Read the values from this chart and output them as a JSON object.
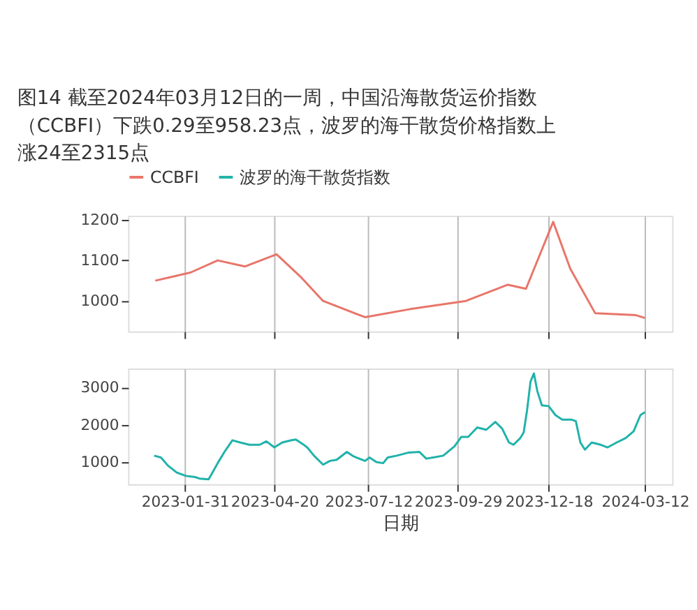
{
  "chart_data": [
    {
      "type": "line",
      "title": "图14  截至2024年03月12日的一周，中国沿海散货运价指数（CCBFI）下跌0.29至958.23点，波罗的海干散货价格指数上涨24至2315点",
      "legend": "top",
      "grid": "x",
      "tick_labels": "y",
      "xlim": [
        "2022-12-12",
        "2024-04-05"
      ],
      "xticks": [
        "2023-01-31",
        "2023-04-20",
        "2023-07-12",
        "2023-09-29",
        "2023-12-18",
        "2024-03-12"
      ],
      "ylim": [
        925,
        1210
      ],
      "yticks": [
        1000,
        1100,
        1200
      ],
      "series": [
        {
          "name": "CCBFI",
          "color": "#e8756a",
          "x": [
            "2023-01-05",
            "2023-02-05",
            "2023-03-01",
            "2023-03-25",
            "2023-04-22",
            "2023-05-13",
            "2023-06-02",
            "2023-07-09",
            "2023-08-18",
            "2023-10-06",
            "2023-11-12",
            "2023-11-28",
            "2023-12-22",
            "2024-01-06",
            "2024-01-28",
            "2024-03-04",
            "2024-03-12"
          ],
          "values": [
            1050,
            1070,
            1100,
            1085,
            1115,
            1060,
            1000,
            960,
            980,
            1000,
            1040,
            1030,
            1195,
            1080,
            970,
            965,
            958
          ]
        }
      ]
    },
    {
      "type": "line",
      "xlabel": "日期",
      "legend": "top",
      "grid": "x",
      "xlim": [
        "2022-12-12",
        "2024-04-05"
      ],
      "xticks": [
        "2023-01-31",
        "2023-04-20",
        "2023-07-12",
        "2023-09-29",
        "2023-12-18",
        "2024-03-12"
      ],
      "ylim": [
        420,
        3500
      ],
      "yticks": [
        1000,
        2000,
        3000
      ],
      "series": [
        {
          "name": "波罗的海干散货指数",
          "color": "#20b2aa",
          "x": [
            "2023-01-04",
            "2023-01-10",
            "2023-01-16",
            "2023-01-24",
            "2023-02-01",
            "2023-02-09",
            "2023-02-13",
            "2023-02-21",
            "2023-02-25",
            "2023-03-01",
            "2023-03-07",
            "2023-03-14",
            "2023-03-21",
            "2023-03-29",
            "2023-04-07",
            "2023-04-13",
            "2023-04-20",
            "2023-04-27",
            "2023-05-05",
            "2023-05-09",
            "2023-05-15",
            "2023-05-19",
            "2023-05-25",
            "2023-06-02",
            "2023-06-08",
            "2023-06-14",
            "2023-06-23",
            "2023-06-29",
            "2023-07-09",
            "2023-07-13",
            "2023-07-19",
            "2023-07-25",
            "2023-07-29",
            "2023-08-06",
            "2023-08-16",
            "2023-08-26",
            "2023-09-01",
            "2023-09-07",
            "2023-09-16",
            "2023-09-26",
            "2023-10-02",
            "2023-10-08",
            "2023-10-16",
            "2023-10-24",
            "2023-11-01",
            "2023-11-07",
            "2023-11-13",
            "2023-11-17",
            "2023-11-23",
            "2023-11-26",
            "2023-11-29",
            "2023-12-02",
            "2023-12-05",
            "2023-12-08",
            "2023-12-12",
            "2023-12-18",
            "2023-12-24",
            "2023-12-30",
            "2024-01-07",
            "2024-01-11",
            "2024-01-15",
            "2024-01-19",
            "2024-01-25",
            "2024-02-02",
            "2024-02-08",
            "2024-02-16",
            "2024-02-24",
            "2024-03-02",
            "2024-03-08",
            "2024-03-12"
          ],
          "values": [
            1180,
            1130,
            920,
            730,
            640,
            610,
            570,
            550,
            760,
            980,
            1280,
            1590,
            1530,
            1470,
            1470,
            1560,
            1400,
            1530,
            1590,
            1610,
            1490,
            1400,
            1180,
            940,
            1040,
            1070,
            1280,
            1160,
            1040,
            1130,
            1010,
            980,
            1130,
            1180,
            1260,
            1280,
            1100,
            1130,
            1180,
            1430,
            1680,
            1680,
            1930,
            1870,
            2080,
            1900,
            1530,
            1470,
            1650,
            1800,
            2400,
            3150,
            3370,
            2900,
            2520,
            2500,
            2260,
            2140,
            2140,
            2100,
            1530,
            1340,
            1530,
            1470,
            1400,
            1530,
            1650,
            1830,
            2260,
            2340
          ]
        }
      ]
    }
  ]
}
